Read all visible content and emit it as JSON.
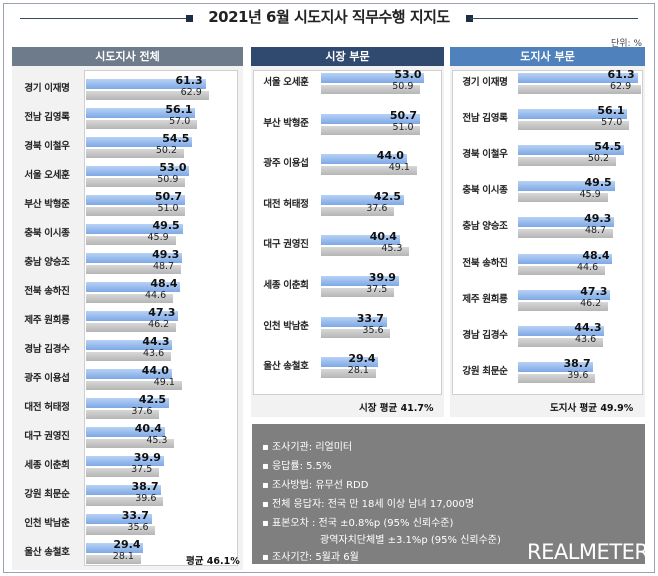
{
  "title": "2021년 6월 시도지사 직무수행 지지도",
  "unit_label": "단위: %",
  "panels": {
    "all": {
      "header": "시도지사 전체",
      "average": "평균 46.1%"
    },
    "mayor": {
      "header": "시장 부문",
      "average": "시장 평균 41.7%"
    },
    "governor": {
      "header": "도지사 부문",
      "average": "도지사 평균 49.9%"
    }
  },
  "info": {
    "lines": [
      "조사기관: 리얼미터",
      "응답률: 5.5%",
      "조사방법: 유무선 RDD",
      "전체 응답자: 전국 만 18세 이상 남녀 17,000명",
      "표본오차 : 전국 ±0.8%p (95% 신뢰수준)",
      "광역자치단체별 ±3.1%p (95% 신뢰수준)",
      "조사기간: 5월과 6월"
    ],
    "brand": "REALMETER"
  },
  "colors": {
    "header": "#6e7b8b",
    "mayor_header": "#2f4a6e",
    "governor_header": "#4f81bd",
    "bar_june": "#8fb4ea",
    "bar_may": "#bfbfbf"
  },
  "chart_data": [
    {
      "type": "bar",
      "title": "시도지사 전체",
      "orientation": "horizontal",
      "categories": [
        "경기 이재명",
        "전남 김영록",
        "경북 이철우",
        "서울 오세훈",
        "부산 박형준",
        "충북 이시종",
        "충남 양승조",
        "전북 송하진",
        "제주 원희룡",
        "경남 김경수",
        "광주 이용섭",
        "대전 허태정",
        "대구 권영진",
        "세종 이춘희",
        "강원 최문순",
        "인천 박남춘",
        "울산 송철호"
      ],
      "series": [
        {
          "values": [
            61.3,
            56.1,
            54.5,
            53.0,
            50.7,
            49.5,
            49.3,
            48.4,
            47.3,
            44.3,
            44.0,
            42.5,
            40.4,
            39.9,
            38.7,
            33.7,
            29.4
          ]
        },
        {
          "values": [
            62.9,
            57.0,
            50.2,
            50.9,
            51.0,
            45.9,
            48.7,
            44.6,
            46.2,
            43.6,
            49.1,
            37.6,
            45.3,
            37.5,
            39.6,
            35.6,
            28.1
          ]
        }
      ]
    },
    {
      "type": "bar",
      "title": "시장 부문",
      "orientation": "horizontal",
      "categories": [
        "서울 오세훈",
        "부산 박형준",
        "광주 이용섭",
        "대전 허태정",
        "대구 권영진",
        "세종 이춘희",
        "인천 박남춘",
        "울산 송철호"
      ],
      "series": [
        {
          "values": [
            53.0,
            50.7,
            44.0,
            42.5,
            40.4,
            39.9,
            33.7,
            29.4
          ]
        },
        {
          "values": [
            50.9,
            51.0,
            49.1,
            37.6,
            45.3,
            37.5,
            35.6,
            28.1
          ]
        }
      ]
    },
    {
      "type": "bar",
      "title": "도지사 부문",
      "orientation": "horizontal",
      "categories": [
        "경기 이재명",
        "전남 김영록",
        "경북 이철우",
        "충북 이시종",
        "충남 양승조",
        "전북 송하진",
        "제주 원희룡",
        "경남 김경수",
        "강원 최문순"
      ],
      "series": [
        {
          "values": [
            61.3,
            56.1,
            54.5,
            49.5,
            49.3,
            48.4,
            47.3,
            44.3,
            38.7
          ]
        },
        {
          "values": [
            62.9,
            57.0,
            50.2,
            45.9,
            48.7,
            44.6,
            46.2,
            43.6,
            39.6
          ]
        }
      ]
    }
  ]
}
